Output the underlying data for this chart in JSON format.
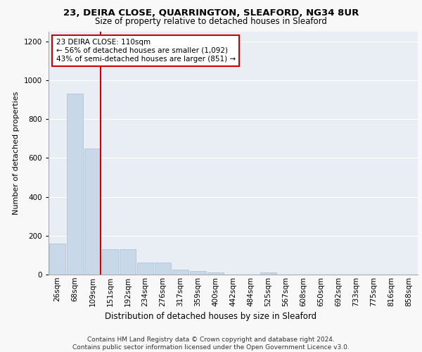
{
  "title1": "23, DEIRA CLOSE, QUARRINGTON, SLEAFORD, NG34 8UR",
  "title2": "Size of property relative to detached houses in Sleaford",
  "xlabel": "Distribution of detached houses by size in Sleaford",
  "ylabel": "Number of detached properties",
  "categories": [
    "26sqm",
    "68sqm",
    "109sqm",
    "151sqm",
    "192sqm",
    "234sqm",
    "276sqm",
    "317sqm",
    "359sqm",
    "400sqm",
    "442sqm",
    "484sqm",
    "525sqm",
    "567sqm",
    "608sqm",
    "650sqm",
    "692sqm",
    "733sqm",
    "775sqm",
    "816sqm",
    "858sqm"
  ],
  "values": [
    160,
    930,
    650,
    130,
    130,
    60,
    60,
    25,
    18,
    12,
    0,
    0,
    12,
    0,
    0,
    0,
    0,
    0,
    0,
    0,
    0
  ],
  "bar_color": "#c8d8e8",
  "bar_edgecolor": "#a8bece",
  "vline_color": "#cc0000",
  "vline_x": 2.45,
  "ylim": [
    0,
    1250
  ],
  "yticks": [
    0,
    200,
    400,
    600,
    800,
    1000,
    1200
  ],
  "annotation_text": "23 DEIRA CLOSE: 110sqm\n← 56% of detached houses are smaller (1,092)\n43% of semi-detached houses are larger (851) →",
  "box_color": "#cc0000",
  "footer": "Contains HM Land Registry data © Crown copyright and database right 2024.\nContains public sector information licensed under the Open Government Licence v3.0.",
  "fig_bg_color": "#f8f8f8",
  "plot_bg_color": "#e8eef4",
  "title1_fontsize": 9.5,
  "title2_fontsize": 8.5,
  "ylabel_fontsize": 8,
  "xlabel_fontsize": 8.5,
  "tick_fontsize": 7.5,
  "ann_fontsize": 7.5,
  "footer_fontsize": 6.5
}
